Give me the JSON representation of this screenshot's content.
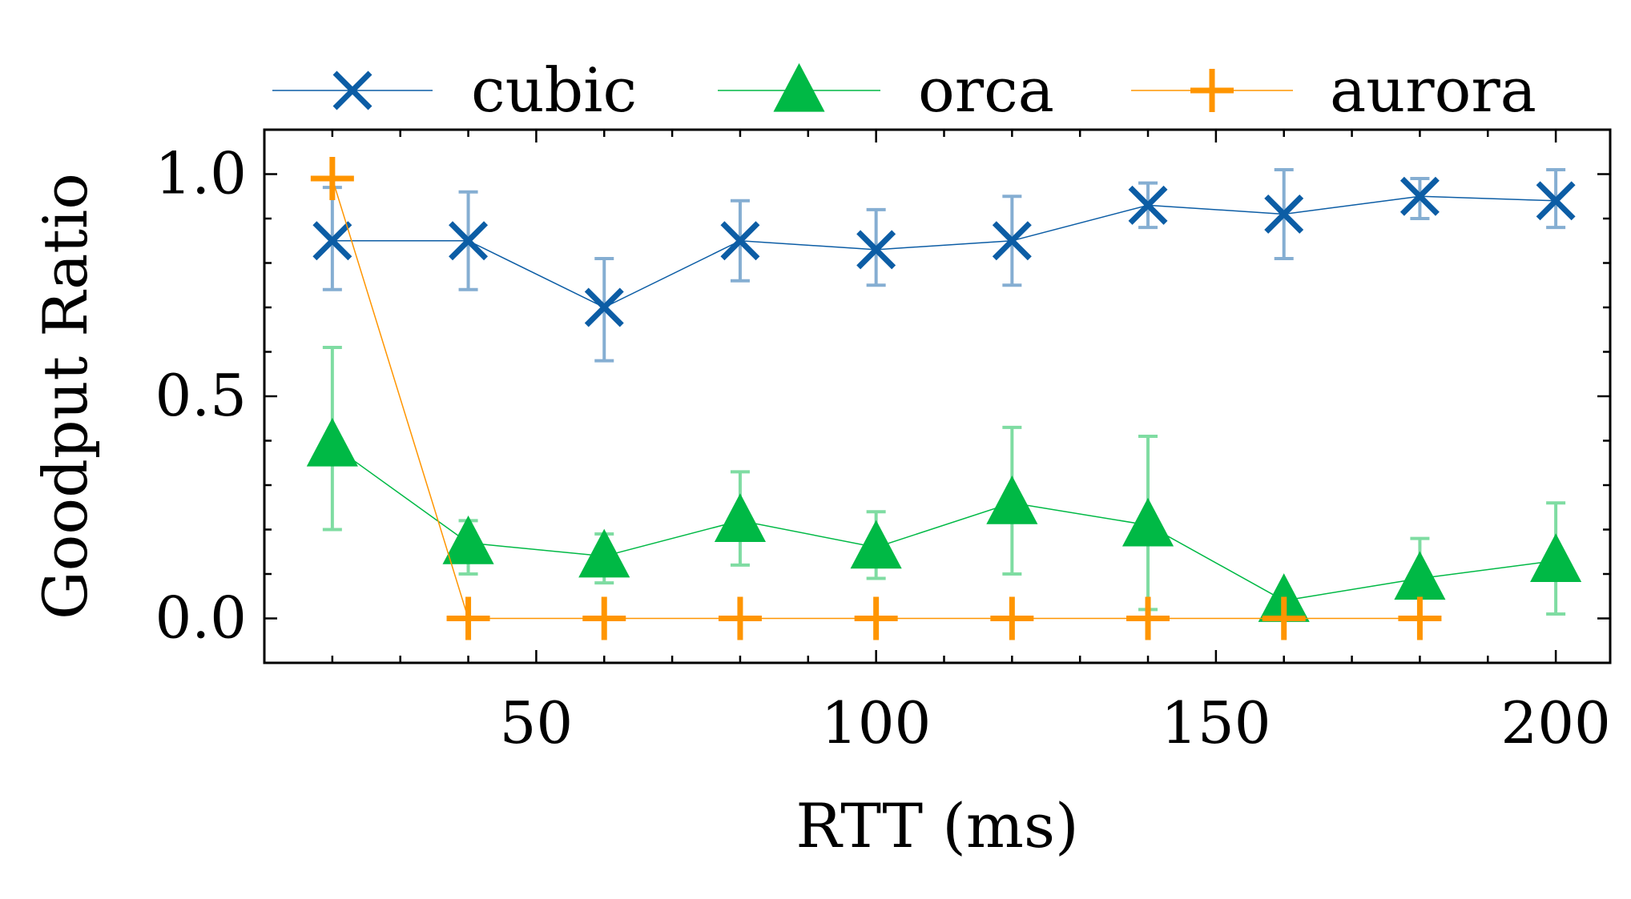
{
  "chart_data": {
    "type": "line",
    "title": "",
    "xlabel": "RTT (ms)",
    "ylabel": "Goodput Ratio",
    "xlim": [
      10,
      208
    ],
    "ylim": [
      -0.1,
      1.1
    ],
    "x_ticks": [
      50,
      100,
      150,
      200
    ],
    "x_tick_labels": [
      "50",
      "100",
      "150",
      "200"
    ],
    "y_ticks": [
      0.0,
      0.5,
      1.0
    ],
    "y_tick_labels": [
      "0.0",
      "0.5",
      "1.0"
    ],
    "legend_position": "top (above plot, single row)",
    "x": [
      20,
      40,
      60,
      80,
      100,
      120,
      140,
      160,
      180,
      200
    ],
    "series": [
      {
        "name": "cubic",
        "marker": "x",
        "color": "#0C5DA5",
        "values": [
          0.85,
          0.85,
          0.7,
          0.85,
          0.83,
          0.85,
          0.93,
          0.91,
          0.95,
          0.94
        ],
        "err_low": [
          0.74,
          0.74,
          0.58,
          0.76,
          0.75,
          0.75,
          0.88,
          0.81,
          0.9,
          0.88
        ],
        "err_high": [
          0.97,
          0.96,
          0.81,
          0.94,
          0.92,
          0.95,
          0.98,
          1.01,
          0.99,
          1.01
        ]
      },
      {
        "name": "orca",
        "marker": "triangle",
        "color": "#00B945",
        "values": [
          0.39,
          0.17,
          0.14,
          0.22,
          0.16,
          0.26,
          0.21,
          0.04,
          0.09,
          0.13
        ],
        "err_low": [
          0.2,
          0.1,
          0.08,
          0.12,
          0.09,
          0.1,
          0.02,
          0.0,
          0.0,
          0.01
        ],
        "err_high": [
          0.61,
          0.22,
          0.19,
          0.33,
          0.24,
          0.43,
          0.41,
          0.0,
          0.18,
          0.26
        ]
      },
      {
        "name": "aurora",
        "marker": "plus",
        "color": "#FF9500",
        "values": [
          0.99,
          0.0,
          0.0,
          0.0,
          0.0,
          0.0,
          0.0,
          0.0,
          0.0
        ],
        "x": [
          20,
          40,
          60,
          80,
          100,
          120,
          140,
          160,
          180
        ]
      }
    ]
  }
}
